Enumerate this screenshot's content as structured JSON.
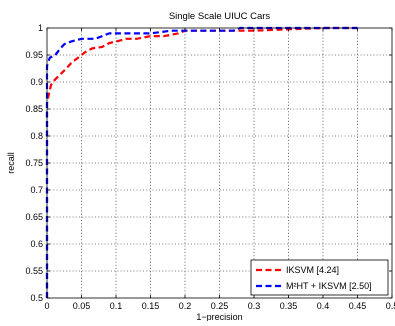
{
  "chart_data": {
    "type": "line",
    "title": "Single Scale UIUC Cars",
    "xlabel": "1−precision",
    "ylabel": "recall",
    "xlim": [
      0,
      0.5
    ],
    "ylim": [
      0.5,
      1
    ],
    "x_ticks": [
      "0",
      "0.05",
      "0.1",
      "0.15",
      "0.2",
      "0.25",
      "0.3",
      "0.35",
      "0.4",
      "0.45",
      "0.5"
    ],
    "y_ticks": [
      "0.5",
      "0.55",
      "0.6",
      "0.65",
      "0.7",
      "0.75",
      "0.8",
      "0.85",
      "0.9",
      "0.95",
      "1"
    ],
    "grid": true,
    "legend_position": "bottom-right",
    "series": [
      {
        "name": "IKSVM [4.24]",
        "color": "#ff0000",
        "points": [
          [
            0,
            0.5
          ],
          [
            0,
            0.86
          ],
          [
            0.003,
            0.88
          ],
          [
            0.006,
            0.895
          ],
          [
            0.012,
            0.905
          ],
          [
            0.02,
            0.915
          ],
          [
            0.028,
            0.925
          ],
          [
            0.035,
            0.935
          ],
          [
            0.045,
            0.945
          ],
          [
            0.055,
            0.955
          ],
          [
            0.065,
            0.962
          ],
          [
            0.08,
            0.965
          ],
          [
            0.09,
            0.972
          ],
          [
            0.1,
            0.975
          ],
          [
            0.115,
            0.98
          ],
          [
            0.13,
            0.98
          ],
          [
            0.15,
            0.985
          ],
          [
            0.17,
            0.985
          ],
          [
            0.19,
            0.99
          ],
          [
            0.2,
            0.995
          ],
          [
            0.25,
            0.995
          ],
          [
            0.3,
            0.995
          ],
          [
            0.4,
            1.0
          ],
          [
            0.45,
            1.0
          ]
        ]
      },
      {
        "name": "M²HT + IKSVM [2.50]",
        "color": "#0000ff",
        "points": [
          [
            0,
            0.5
          ],
          [
            0,
            0.93
          ],
          [
            0.004,
            0.945
          ],
          [
            0.012,
            0.95
          ],
          [
            0.018,
            0.96
          ],
          [
            0.025,
            0.97
          ],
          [
            0.035,
            0.975
          ],
          [
            0.05,
            0.98
          ],
          [
            0.07,
            0.98
          ],
          [
            0.08,
            0.985
          ],
          [
            0.09,
            0.99
          ],
          [
            0.1,
            0.99
          ],
          [
            0.13,
            0.99
          ],
          [
            0.15,
            0.99
          ],
          [
            0.18,
            0.995
          ],
          [
            0.27,
            0.995
          ],
          [
            0.28,
            1.0
          ],
          [
            0.45,
            1.0
          ]
        ]
      }
    ]
  }
}
